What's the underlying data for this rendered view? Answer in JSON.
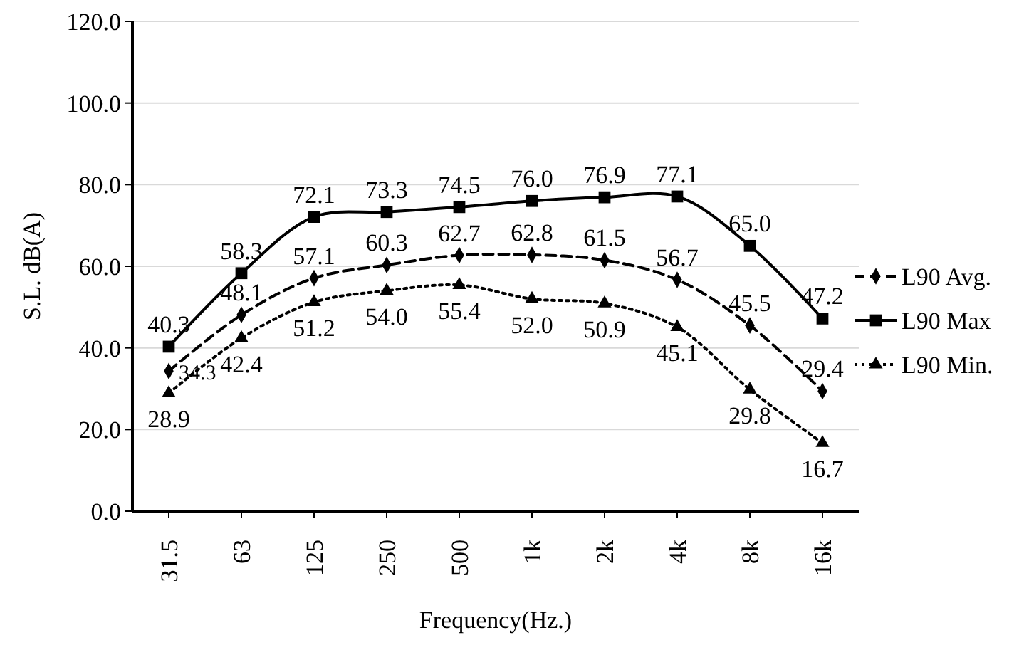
{
  "chart_data": {
    "type": "line",
    "xlabel": "Frequency(Hz.)",
    "ylabel": "S.L. dB(A)",
    "categories": [
      "31.5",
      "63",
      "125",
      "250",
      "500",
      "1k",
      "2k",
      "4k",
      "8k",
      "16k"
    ],
    "series": [
      {
        "name": "L90 Avg.",
        "color": "#000000",
        "marker": "diamond",
        "line_style": "dashed",
        "values": [
          34.3,
          48.1,
          57.1,
          60.3,
          62.7,
          62.8,
          61.5,
          56.7,
          45.5,
          29.4
        ],
        "value_labels": [
          "34.3",
          "48.1",
          "57.1",
          "60.3",
          "62.7",
          "62.8",
          "61.5",
          "56.7",
          "45.5",
          "29.4"
        ]
      },
      {
        "name": "L90 Max",
        "color": "#000000",
        "marker": "square",
        "line_style": "solid",
        "values": [
          40.3,
          58.3,
          72.1,
          73.3,
          74.5,
          76.0,
          76.9,
          77.1,
          65.0,
          47.2
        ],
        "value_labels": [
          "40.3",
          "58.3",
          "72.1",
          "73.3",
          "74.5",
          "76.0",
          "76.9",
          "77.1",
          "65.0",
          "47.2"
        ]
      },
      {
        "name": "L90 Min.",
        "color": "#000000",
        "marker": "triangle",
        "line_style": "dotted",
        "values": [
          28.9,
          42.4,
          51.2,
          54.0,
          55.4,
          52.0,
          50.9,
          45.1,
          29.8,
          16.7
        ],
        "value_labels": [
          "28.9",
          "42.4",
          "51.2",
          "54.0",
          "55.4",
          "52.0",
          "50.9",
          "45.1",
          "29.8",
          "16.7"
        ]
      }
    ],
    "ylim": [
      0,
      120
    ],
    "yticks": [
      {
        "value": 0,
        "label": "0.0"
      },
      {
        "value": 20,
        "label": "20.0"
      },
      {
        "value": 40,
        "label": "40.0"
      },
      {
        "value": 60,
        "label": "60.0"
      },
      {
        "value": 80,
        "label": "80.0"
      },
      {
        "value": 100,
        "label": "100.0"
      },
      {
        "value": 120,
        "label": "120.0"
      }
    ],
    "grid": "y",
    "legend": "right"
  }
}
